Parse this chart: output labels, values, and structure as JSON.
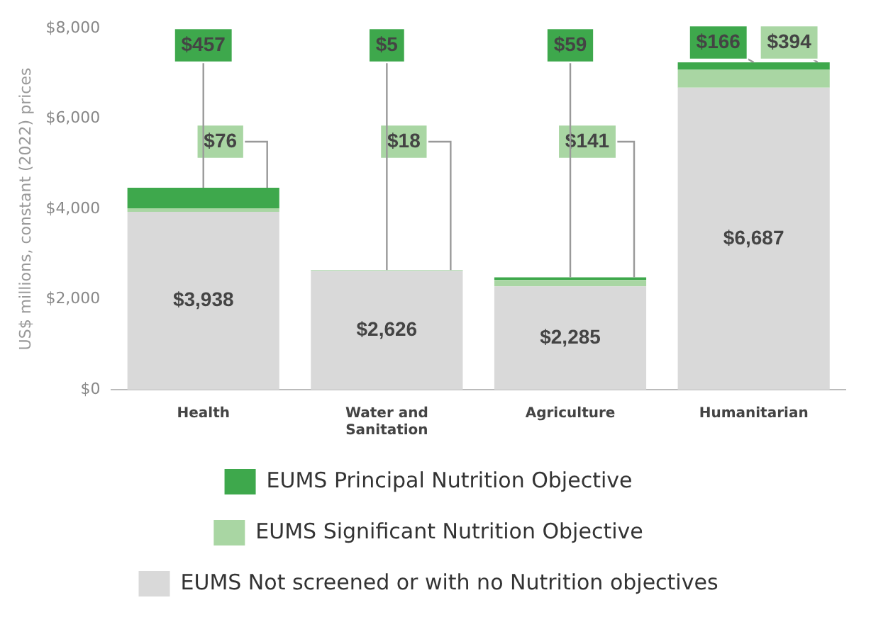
{
  "chart_data": {
    "type": "bar",
    "stacked": true,
    "ylabel": "US$ millions, constant (2022) prices",
    "categories": [
      "Health",
      "Water and\nSanitation",
      "Agriculture",
      "Humanitarian"
    ],
    "series": [
      {
        "name": "EUMS Not screened or with no Nutrition objectives",
        "color": "#d9d9d9",
        "values": [
          3938,
          2626,
          2285,
          6687
        ],
        "value_labels": [
          "$3,938",
          "$2,626",
          "$2,285",
          "$6,687"
        ]
      },
      {
        "name": "EUMS Significant Nutrition Objective",
        "color": "#a9d6a3",
        "values": [
          76,
          18,
          141,
          394
        ],
        "value_labels": [
          "$76",
          "$18",
          "$141",
          "$394"
        ]
      },
      {
        "name": "EUMS Principal Nutrition Objective",
        "color": "#3ea84c",
        "values": [
          457,
          5,
          59,
          166
        ],
        "value_labels": [
          "$457",
          "$5",
          "$59",
          "$166"
        ]
      }
    ],
    "ylim": [
      0,
      8000
    ],
    "yticks": [
      {
        "value": 0,
        "label": "$0"
      },
      {
        "value": 2000,
        "label": "$2,000"
      },
      {
        "value": 4000,
        "label": "$4,000"
      },
      {
        "value": 6000,
        "label": "$6,000"
      },
      {
        "value": 8000,
        "label": "$8,000"
      }
    ],
    "grid": false,
    "legend": "bottom"
  }
}
